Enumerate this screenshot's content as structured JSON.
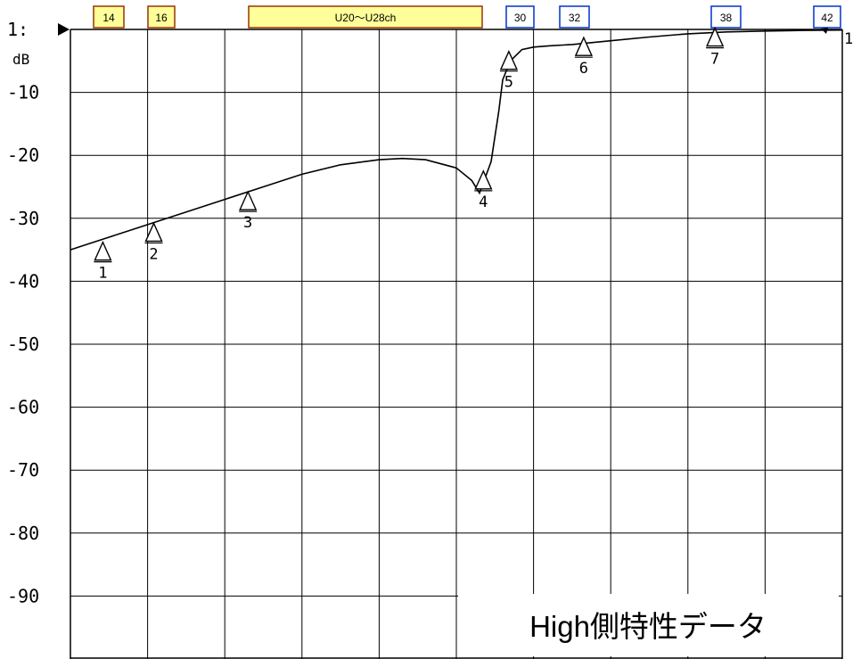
{
  "chart_data": {
    "type": "line",
    "title": "",
    "xlabel": "",
    "ylabel": "dB",
    "ylim": [
      -100,
      0
    ],
    "y_ticks": [
      "1:",
      "-10",
      "-20",
      "-30",
      "-40",
      "-50",
      "-60",
      "-70",
      "-80",
      "-90"
    ],
    "grid": true,
    "grid_columns": 10,
    "reference_marker": "1",
    "channel_tags": [
      {
        "label": "14",
        "group": "red"
      },
      {
        "label": "16",
        "group": "red"
      },
      {
        "label": "U20〜U28ch",
        "group": "red"
      },
      {
        "label": "30",
        "group": "blue"
      },
      {
        "label": "32",
        "group": "blue"
      },
      {
        "label": "38",
        "group": "blue"
      },
      {
        "label": "42",
        "group": "blue"
      }
    ],
    "series": [
      {
        "x": [
          0,
          0.25,
          0.5,
          1.0,
          1.5,
          2.0,
          2.5,
          3.0,
          3.5,
          4.0,
          4.3,
          4.6,
          5.0,
          5.2,
          5.3,
          5.45,
          5.5,
          5.55,
          5.6,
          5.7,
          5.85,
          6.0,
          6.2,
          6.5,
          7.0,
          7.5,
          8.0,
          8.5,
          9.0,
          9.5,
          10.0
        ],
        "values": [
          -35,
          -34,
          -33,
          -31,
          -29,
          -27,
          -25,
          -23,
          -21.5,
          -20.7,
          -20.5,
          -20.7,
          -22,
          -24,
          -26,
          -21,
          -17,
          -13,
          -8,
          -5,
          -3.2,
          -2.8,
          -2.6,
          -2.4,
          -1.8,
          -1.2,
          -0.7,
          -0.4,
          -0.25,
          -0.15,
          -0.1
        ]
      }
    ],
    "markers": [
      {
        "label": "1",
        "x": 0.42,
        "y": -35.5
      },
      {
        "label": "2",
        "x": 1.08,
        "y": -32.5
      },
      {
        "label": "3",
        "x": 2.3,
        "y": -27.5
      },
      {
        "label": "4",
        "x": 5.35,
        "y": -24.2
      },
      {
        "label": "5",
        "x": 5.68,
        "y": -5.2
      },
      {
        "label": "6",
        "x": 6.65,
        "y": -3.0
      },
      {
        "label": "7",
        "x": 8.35,
        "y": -1.5
      }
    ],
    "annotation": "High側特性データ"
  }
}
